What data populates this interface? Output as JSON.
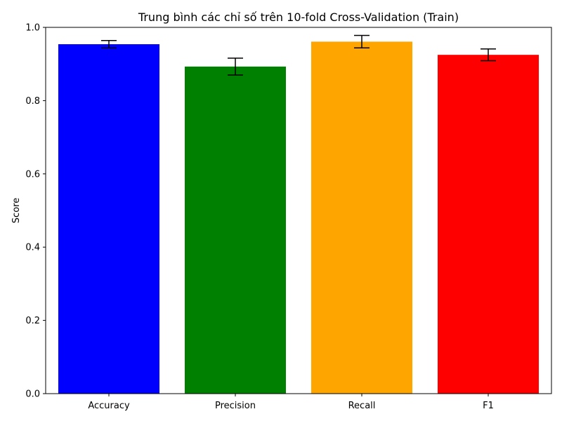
{
  "chart_data": {
    "type": "bar",
    "title": "Trung bình các chỉ số trên 10-fold Cross-Validation (Train)",
    "xlabel": "",
    "ylabel": "Score",
    "categories": [
      "Accuracy",
      "Precision",
      "Recall",
      "F1"
    ],
    "values": [
      0.954,
      0.893,
      0.961,
      0.925
    ],
    "errors": [
      0.01,
      0.023,
      0.017,
      0.016
    ],
    "colors": [
      "#0000ff",
      "#008000",
      "#ffa500",
      "#ff0000"
    ],
    "ylim": [
      0,
      1.0
    ],
    "yticks": [
      "0.0",
      "0.2",
      "0.4",
      "0.6",
      "0.8",
      "1.0"
    ],
    "grid": false,
    "error_bar_color": "#000000"
  }
}
